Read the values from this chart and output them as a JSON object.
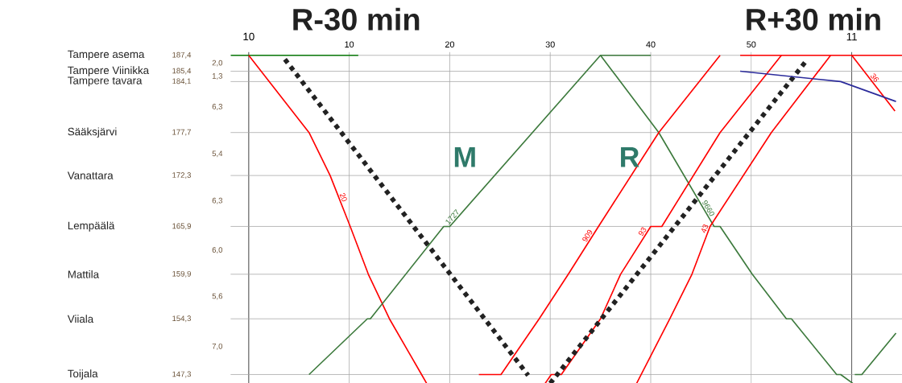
{
  "chart_data": {
    "type": "line",
    "xlim": [
      -1.8,
      65
    ],
    "ylim": [
      146.2,
      187.8
    ],
    "xticks": [
      10,
      20,
      30,
      40,
      50
    ],
    "x2lim": [
      9.97,
      11.0833
    ],
    "x2ticks": [
      10,
      11
    ],
    "yticks": [
      {
        "value": 187.4,
        "label": "187,4"
      },
      {
        "value": 185.4,
        "label": "185,4"
      },
      {
        "value": 184.1,
        "label": "184,1"
      },
      {
        "value": 177.7,
        "label": "177,7"
      },
      {
        "value": 172.3,
        "label": "172,3"
      },
      {
        "value": 165.9,
        "label": "165,9"
      },
      {
        "value": 159.9,
        "label": "159,9"
      },
      {
        "value": 154.3,
        "label": "154,3"
      },
      {
        "value": 147.3,
        "label": "147,3"
      }
    ],
    "grid": true,
    "series": [
      {
        "color": "#0a7a0a",
        "x": [
          -1.8,
          10.9
        ],
        "values": [
          187.4,
          187.4
        ]
      },
      {
        "name": "20",
        "color": "#ff0000",
        "x": [
          0,
          6.0,
          8.1,
          10.1,
          11.9,
          14.0,
          17.2,
          17.7
        ],
        "values": [
          187.4,
          177.7,
          172.3,
          165.9,
          159.9,
          154.3,
          147.3,
          146.2
        ]
      },
      {
        "color": "#222222",
        "line_style": "dotted",
        "x": [
          3.6,
          27.8
        ],
        "values": [
          186.9,
          147.2
        ]
      },
      {
        "name": "1727",
        "color": "#3d7a3d",
        "x": [
          6.0,
          11.8,
          12.1,
          19.4,
          20.0,
          35.0,
          40.0
        ],
        "values": [
          147.3,
          154.3,
          154.3,
          165.9,
          165.9,
          187.4,
          187.4
        ]
      },
      {
        "name": "9660",
        "color": "#3d7a3d",
        "x": [
          35.0,
          40.8,
          46.3,
          46.9,
          50.1,
          53.5,
          54.0,
          58.5,
          58.9,
          60.1
        ],
        "values": [
          187.4,
          177.7,
          165.9,
          165.9,
          159.9,
          154.3,
          154.3,
          147.3,
          147.3,
          146.2
        ]
      },
      {
        "name": "909",
        "color": "#ff0000",
        "x": [
          22.9,
          25.1,
          28.9,
          31.8,
          34.8,
          40.8,
          46.9
        ],
        "values": [
          147.3,
          147.3,
          154.3,
          159.9,
          165.9,
          177.7,
          187.4
        ]
      },
      {
        "name": "93",
        "color": "#ff0000",
        "x": [
          29.5,
          30.1,
          31.1,
          35.0,
          37.0,
          40.0,
          41.1,
          46.9,
          53.0
        ],
        "values": [
          146.2,
          147.3,
          147.3,
          154.3,
          159.9,
          165.9,
          165.9,
          177.7,
          187.4
        ]
      },
      {
        "name": "43",
        "color": "#ff0000",
        "x": [
          38.6,
          41.9,
          44.1,
          45.9,
          52.0,
          57.9
        ],
        "values": [
          146.2,
          154.3,
          159.9,
          165.9,
          177.7,
          187.4
        ]
      },
      {
        "color": "#222222",
        "line_style": "dotted",
        "x": [
          30.0,
          35.1,
          55.6
        ],
        "values": [
          146.2,
          154.3,
          186.9
        ]
      },
      {
        "color": "#ff0000",
        "x": [
          48.9,
          65
        ],
        "values": [
          187.4,
          187.4
        ]
      },
      {
        "name": "36",
        "color": "#ff0000",
        "x": [
          60.0,
          64.3
        ],
        "values": [
          187.4,
          180.4
        ]
      },
      {
        "color": "#2b2b9b",
        "x": [
          48.9,
          58.9,
          64.4
        ],
        "values": [
          185.4,
          184.1,
          181.6
        ]
      },
      {
        "color": "#3d7a3d",
        "x": [
          60.3,
          61.0,
          64.4
        ],
        "values": [
          147.3,
          147.3,
          152.5
        ]
      }
    ],
    "annotations": [
      "R-30 min",
      "R+30 min",
      "M",
      "R",
      "Tampere asema",
      "Tampere Viinikka",
      "Tampere tavara",
      "Sääksjärvi",
      "Vanattara",
      "Lempäälä",
      "Mattila",
      "Viiala",
      "Toijala",
      "2,0",
      "1,3",
      "6,3",
      "5,4",
      "6,3",
      "6,0",
      "5,6",
      "7,0"
    ]
  }
}
